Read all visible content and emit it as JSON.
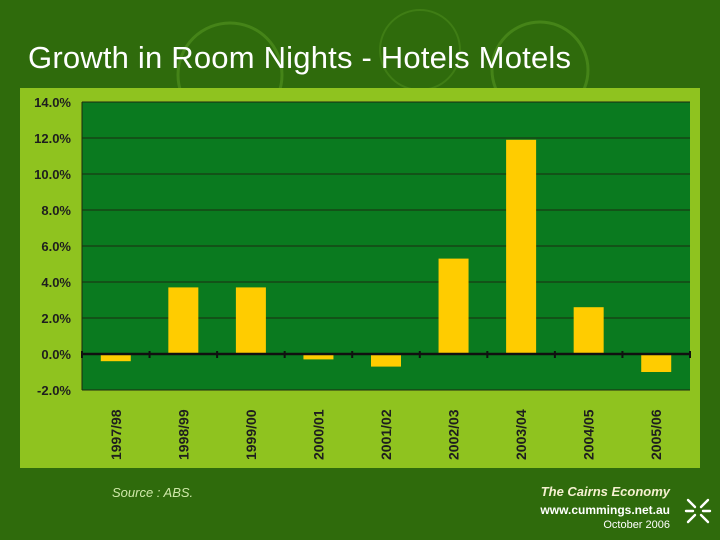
{
  "slide": {
    "title": "Growth in Room Nights - Hotels Motels",
    "source": "Source :  ABS.",
    "brand_title": "The Cairns Economy",
    "brand_url": "www.cummings.net.au",
    "date": "October 2006"
  },
  "colors": {
    "background": "#2f6b0c",
    "panel": "#8fc31f",
    "plot": "#0a7a1f",
    "bar": "#ffcc00"
  },
  "chart_data": {
    "type": "bar",
    "title": "Growth in Room Nights - Hotels Motels",
    "xlabel": "",
    "ylabel": "",
    "categories": [
      "1997/98",
      "1998/99",
      "1999/00",
      "2000/01",
      "2001/02",
      "2002/03",
      "2003/04",
      "2004/05",
      "2005/06"
    ],
    "values": [
      -0.4,
      3.7,
      3.7,
      -0.3,
      -0.7,
      5.3,
      11.9,
      2.6,
      -1.0
    ],
    "y_ticks": [
      14,
      12,
      10,
      8,
      6,
      4,
      2,
      0,
      -2
    ],
    "y_tick_labels": [
      "14.0%",
      "12.0%",
      "10.0%",
      "8.0%",
      "6.0%",
      "4.0%",
      "2.0%",
      "0.0%",
      "-2.0%"
    ],
    "ylim": [
      -2,
      14
    ],
    "grid": true,
    "legend": "none"
  }
}
